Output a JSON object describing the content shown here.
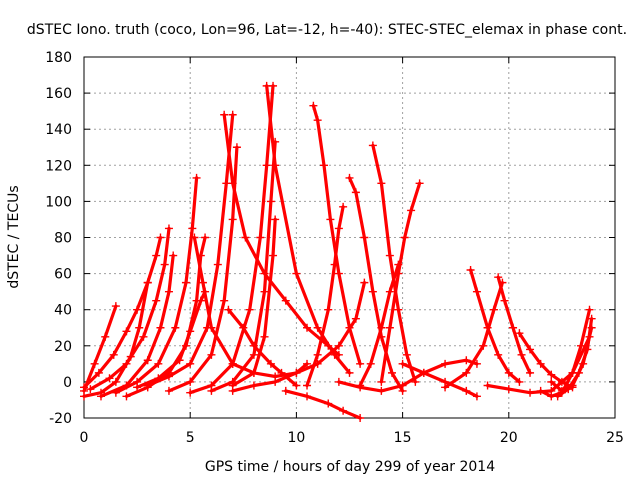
{
  "chart_data": {
    "type": "scatter",
    "title": "dSTEC Iono. truth (coco, Lon=96, Lat=-12, h=-40): STEC-STEC_elemax in phase cont.",
    "xlabel": "GPS time / hours of day 299 of year 2014",
    "ylabel": "dSTEC  / TECUs",
    "xlim": [
      0,
      25
    ],
    "ylim": [
      -20,
      180
    ],
    "xticks": [
      "0",
      "5",
      "10",
      "15",
      "20",
      "25"
    ],
    "yticks": [
      "-20",
      "0",
      "20",
      "40",
      "60",
      "80",
      "100",
      "120",
      "140",
      "160",
      "180"
    ],
    "grid": true,
    "marker": "plus",
    "color": "#ff0000",
    "series": [
      {
        "x": [
          0,
          0.5,
          1,
          1.5
        ],
        "y": [
          -5,
          10,
          25,
          42
        ]
      },
      {
        "x": [
          0,
          0.8,
          1.5,
          2.2,
          2.6,
          3.0
        ],
        "y": [
          -8,
          -6,
          0,
          14,
          30,
          55
        ]
      },
      {
        "x": [
          0,
          0.7,
          1.4,
          2.0,
          2.5,
          3.0,
          3.4,
          3.6
        ],
        "y": [
          -3,
          5,
          15,
          28,
          40,
          55,
          70,
          80
        ]
      },
      {
        "x": [
          0.3,
          1.2,
          2.0,
          2.8,
          3.4,
          3.8,
          4.0
        ],
        "y": [
          -4,
          2,
          10,
          25,
          45,
          65,
          85
        ]
      },
      {
        "x": [
          0.8,
          2.0,
          3.0,
          3.6,
          4.0,
          4.2
        ],
        "y": [
          -8,
          -2,
          12,
          30,
          50,
          70
        ]
      },
      {
        "x": [
          1.5,
          2.5,
          3.5,
          4.3,
          4.8,
          5.1,
          5.3
        ],
        "y": [
          -6,
          0,
          10,
          30,
          55,
          85,
          113
        ]
      },
      {
        "x": [
          2.0,
          3.0,
          4.0,
          4.8,
          5.3,
          5.5,
          5.7
        ],
        "y": [
          -8,
          -3,
          5,
          20,
          45,
          70,
          80
        ]
      },
      {
        "x": [
          2.5,
          3.5,
          4.5,
          5.0,
          5.5,
          5.7
        ],
        "y": [
          -3,
          2,
          12,
          28,
          45,
          50
        ]
      },
      {
        "x": [
          3.0,
          4.0,
          5.0,
          5.8,
          6.3,
          6.7,
          7.0
        ],
        "y": [
          -2,
          3,
          10,
          30,
          65,
          110,
          148
        ]
      },
      {
        "x": [
          4.0,
          5.0,
          6.0,
          6.6,
          7.0,
          7.2
        ],
        "y": [
          -5,
          0,
          15,
          45,
          90,
          130
        ]
      },
      {
        "x": [
          5.0,
          6.0,
          7.0,
          7.8,
          8.3,
          8.6,
          8.9
        ],
        "y": [
          -6,
          -2,
          10,
          40,
          80,
          120,
          164
        ]
      },
      {
        "x": [
          6.0,
          7.0,
          8.0,
          8.5,
          8.8,
          9.0
        ],
        "y": [
          -5,
          0,
          15,
          50,
          100,
          133
        ]
      },
      {
        "x": [
          7.0,
          8.0,
          8.5,
          8.9,
          9.0
        ],
        "y": [
          -2,
          5,
          25,
          70,
          90
        ]
      },
      {
        "x": [
          6.8,
          7.5,
          8.0,
          8.8,
          9.3,
          10.0
        ],
        "y": [
          40,
          30,
          20,
          10,
          5,
          -2
        ]
      },
      {
        "x": [
          5.2,
          5.6,
          6.0,
          7.0,
          8.0,
          9.0,
          10.0,
          10.5
        ],
        "y": [
          80,
          55,
          30,
          10,
          5,
          3,
          5,
          10
        ]
      },
      {
        "x": [
          6.6,
          7.0,
          7.6,
          8.5,
          9.5,
          10.5,
          11.5,
          12.0
        ],
        "y": [
          148,
          110,
          80,
          60,
          45,
          30,
          20,
          15
        ]
      },
      {
        "x": [
          8.6,
          9.0,
          10.0,
          11.0,
          11.8,
          12.5
        ],
        "y": [
          164,
          120,
          60,
          30,
          15,
          5
        ]
      },
      {
        "x": [
          7.0,
          8.0,
          9.0,
          10.0,
          11.0,
          12.0,
          12.8,
          13.2
        ],
        "y": [
          -5,
          -2,
          0,
          5,
          10,
          20,
          35,
          55
        ]
      },
      {
        "x": [
          10.8,
          11.0,
          11.3,
          11.6,
          12.0,
          12.5,
          13.0
        ],
        "y": [
          153,
          145,
          120,
          90,
          60,
          30,
          10
        ]
      },
      {
        "x": [
          10.5,
          11.0,
          11.5,
          11.8,
          12.0,
          12.2
        ],
        "y": [
          -2,
          15,
          40,
          65,
          85,
          97
        ]
      },
      {
        "x": [
          9.5,
          10.5,
          11.5,
          12.2,
          13.0
        ],
        "y": [
          -5,
          -8,
          -12,
          -16,
          -20
        ]
      },
      {
        "x": [
          12.5,
          12.8,
          13.2,
          13.6,
          14.0,
          14.5,
          15.0
        ],
        "y": [
          113,
          105,
          80,
          50,
          25,
          5,
          -5
        ]
      },
      {
        "x": [
          13.6,
          14.0,
          14.4,
          14.8,
          15.2,
          15.6
        ],
        "y": [
          131,
          110,
          70,
          40,
          15,
          0
        ]
      },
      {
        "x": [
          13.0,
          13.5,
          14.0,
          14.4,
          14.8
        ],
        "y": [
          -2,
          10,
          30,
          50,
          65
        ]
      },
      {
        "x": [
          14.0,
          14.4,
          14.8,
          15.1,
          15.4,
          15.8
        ],
        "y": [
          0,
          30,
          60,
          80,
          95,
          110
        ]
      },
      {
        "x": [
          12.0,
          13.0,
          14.0,
          15.0,
          16.0,
          17.0,
          18.0,
          18.5
        ],
        "y": [
          0,
          -3,
          -5,
          -2,
          5,
          10,
          12,
          10
        ]
      },
      {
        "x": [
          15.0,
          16.0,
          17.0,
          18.0,
          18.5
        ],
        "y": [
          10,
          5,
          0,
          -5,
          -8
        ]
      },
      {
        "x": [
          18.2,
          18.5,
          19.0,
          19.5,
          20.0,
          20.5
        ],
        "y": [
          62,
          50,
          30,
          15,
          5,
          0
        ]
      },
      {
        "x": [
          19.5,
          19.8,
          20.2,
          20.6,
          21.0
        ],
        "y": [
          58,
          45,
          30,
          15,
          5
        ]
      },
      {
        "x": [
          17.0,
          18.0,
          18.8,
          19.3,
          19.7
        ],
        "y": [
          -3,
          5,
          20,
          40,
          55
        ]
      },
      {
        "x": [
          20.5,
          21.0,
          21.5,
          22.0,
          22.5,
          23.0
        ],
        "y": [
          27,
          18,
          10,
          4,
          0,
          -3
        ]
      },
      {
        "x": [
          19.0,
          20.0,
          21.0,
          22.0,
          23.0,
          23.8
        ],
        "y": [
          -2,
          -4,
          -6,
          -5,
          5,
          25
        ]
      },
      {
        "x": [
          21.5,
          22.0,
          22.5,
          23.0,
          23.4,
          23.8
        ],
        "y": [
          -5,
          -8,
          -6,
          5,
          20,
          40
        ]
      },
      {
        "x": [
          22.0,
          22.5,
          23.0,
          23.5,
          23.9
        ],
        "y": [
          0,
          -5,
          -2,
          10,
          30
        ]
      },
      {
        "x": [
          22.3,
          22.8,
          23.3,
          23.7,
          23.9
        ],
        "y": [
          -8,
          -4,
          5,
          18,
          35
        ]
      }
    ]
  }
}
